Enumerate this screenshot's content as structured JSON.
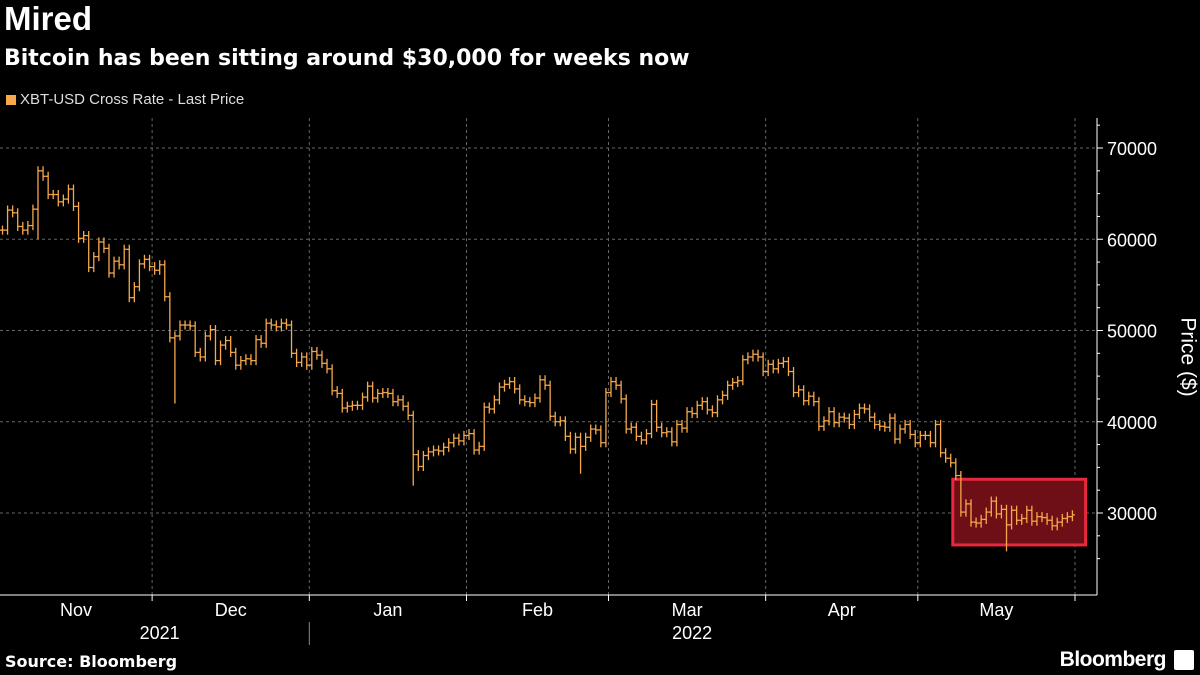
{
  "header": {
    "title": "Mired",
    "subtitle": "Bitcoin has been sitting around $30,000 for weeks now"
  },
  "footer": {
    "source": "Source: Bloomberg",
    "logo": "Bloomberg"
  },
  "chart_data": {
    "type": "bar",
    "style": "ohlc",
    "title": "Mired",
    "subtitle": "Bitcoin has been sitting around $30,000 for weeks now",
    "legend": [
      "XBT-USD Cross Rate - Last Price"
    ],
    "legend_placement": "top-left",
    "ylabel": "Price ($)",
    "ylim": [
      23000,
      73000
    ],
    "yticks": [
      30000,
      40000,
      50000,
      60000,
      70000
    ],
    "ytick_labels": [
      "30000",
      "40000",
      "50000",
      "60000",
      "70000"
    ],
    "x_start": "2021-11-01",
    "months": [
      "Nov",
      "Dec",
      "Jan",
      "Feb",
      "Mar",
      "Apr",
      "May"
    ],
    "month_days": [
      30,
      31,
      31,
      28,
      31,
      30,
      31
    ],
    "years": [
      "2021",
      "2022"
    ],
    "grid": true,
    "colors": {
      "series": "#f7a84a",
      "highlight_fill": "#6e0f17",
      "highlight_stroke": "#e8283c",
      "grid": "#666666"
    },
    "highlight": {
      "from_day": 188,
      "to_day": 213,
      "price_range": [
        26500,
        33700
      ]
    },
    "close_thousands": [
      61.0,
      63.2,
      62.9,
      61.4,
      61.0,
      61.5,
      63.3,
      67.5,
      66.9,
      64.9,
      64.9,
      64.1,
      64.4,
      65.5,
      63.6,
      60.1,
      60.4,
      56.9,
      58.1,
      59.7,
      59.0,
      56.3,
      57.6,
      57.2,
      58.9,
      53.6,
      54.8,
      57.3,
      57.8,
      57.0,
      56.6,
      57.2,
      53.7,
      49.2,
      49.4,
      50.6,
      50.6,
      50.5,
      47.6,
      47.1,
      49.4,
      50.1,
      46.7,
      48.4,
      48.9,
      47.6,
      46.2,
      46.7,
      46.9,
      46.7,
      49.0,
      48.6,
      50.8,
      50.6,
      50.4,
      50.8,
      50.6,
      47.5,
      46.5,
      47.1,
      46.2,
      47.7,
      47.3,
      46.4,
      45.8,
      43.4,
      43.1,
      41.5,
      41.7,
      41.8,
      41.8,
      42.7,
      43.9,
      42.6,
      43.1,
      43.2,
      43.1,
      42.2,
      42.4,
      41.7,
      40.7,
      36.4,
      35.1,
      36.3,
      36.7,
      36.9,
      36.8,
      37.2,
      37.7,
      38.2,
      37.9,
      38.5,
      38.7,
      36.9,
      37.3,
      41.6,
      41.4,
      42.4,
      43.8,
      44.1,
      44.4,
      43.6,
      42.4,
      42.2,
      42.1,
      42.6,
      44.6,
      44.0,
      40.6,
      40.0,
      40.1,
      38.4,
      37.0,
      38.3,
      37.3,
      38.3,
      39.2,
      39.1,
      37.7,
      43.2,
      44.4,
      44.0,
      42.5,
      39.2,
      39.4,
      38.4,
      38.0,
      38.7,
      41.9,
      39.4,
      38.8,
      38.9,
      37.8,
      39.7,
      39.3,
      41.1,
      40.9,
      41.8,
      42.2,
      41.3,
      41.0,
      42.4,
      42.9,
      44.0,
      44.3,
      44.5,
      46.8,
      47.1,
      47.4,
      47.1,
      45.5,
      46.3,
      45.8,
      46.4,
      46.6,
      45.5,
      43.2,
      43.5,
      42.3,
      42.8,
      42.2,
      39.5,
      40.1,
      41.1,
      39.9,
      40.5,
      40.4,
      39.7,
      40.8,
      41.5,
      41.4,
      40.5,
      39.7,
      39.5,
      39.4,
      40.4,
      38.1,
      39.2,
      39.7,
      38.6,
      37.7,
      38.5,
      38.5,
      37.7,
      39.7,
      36.6,
      36.0,
      35.5,
      34.1,
      30.1,
      31.0,
      29.0,
      28.9,
      29.3,
      30.1,
      31.3,
      29.9,
      30.4,
      28.7,
      30.3,
      29.2,
      29.4,
      30.3,
      29.1,
      29.6,
      29.5,
      29.2,
      28.6,
      29.0,
      29.4,
      29.6,
      29.8
    ],
    "notable_lows_thousands": {
      "7": 60.0,
      "34": 42.0,
      "81": 33.0,
      "114": 34.3,
      "198": 25.8
    }
  }
}
